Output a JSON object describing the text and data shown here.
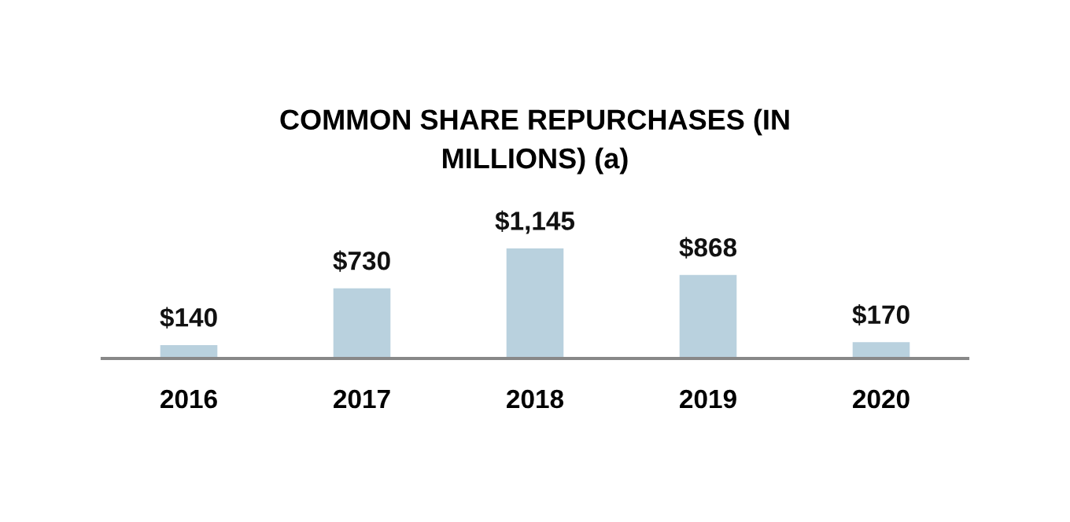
{
  "chart_data": {
    "type": "bar",
    "title": "COMMON SHARE REPURCHASES (IN\nMILLIONS) (a)",
    "categories": [
      "2016",
      "2017",
      "2018",
      "2019",
      "2020"
    ],
    "values": [
      140,
      730,
      1145,
      868,
      170
    ],
    "value_labels": [
      "$140",
      "$730",
      "$1,145",
      "$868",
      "$170"
    ],
    "color": "#b9d1de",
    "grid": false,
    "legend": false
  }
}
